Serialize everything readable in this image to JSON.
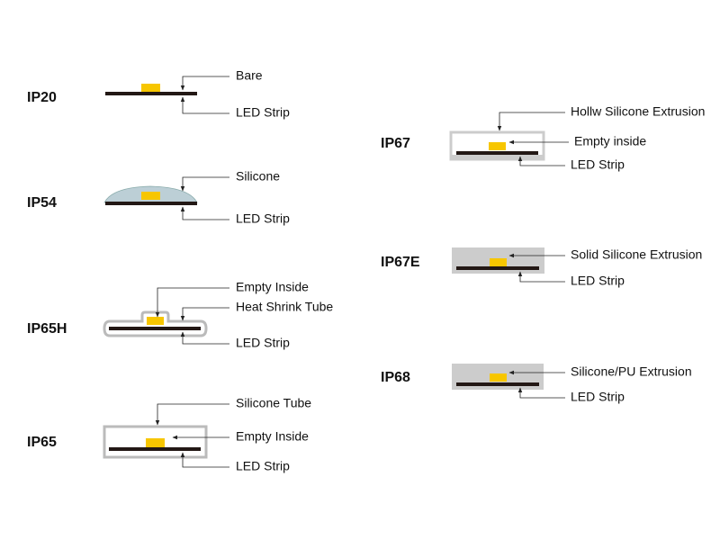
{
  "items": [
    {
      "code": "IP20",
      "labels": [
        "Bare",
        "LED Strip"
      ]
    },
    {
      "code": "IP54",
      "labels": [
        "Silicone",
        "LED Strip"
      ]
    },
    {
      "code": "IP65H",
      "labels": [
        "Empty Inside",
        "Heat Shrink Tube",
        "LED Strip"
      ]
    },
    {
      "code": "IP65",
      "labels": [
        "Silicone Tube",
        "Empty Inside",
        "LED Strip"
      ]
    },
    {
      "code": "IP67",
      "labels": [
        "Hollw Silicone Extrusion",
        "Empty inside",
        "LED Strip"
      ]
    },
    {
      "code": "IP67E",
      "labels": [
        "Solid Silicone Extrusion",
        "LED Strip"
      ]
    },
    {
      "code": "IP68",
      "labels": [
        "Silicone/PU Extrusion",
        "LED Strip"
      ]
    }
  ]
}
